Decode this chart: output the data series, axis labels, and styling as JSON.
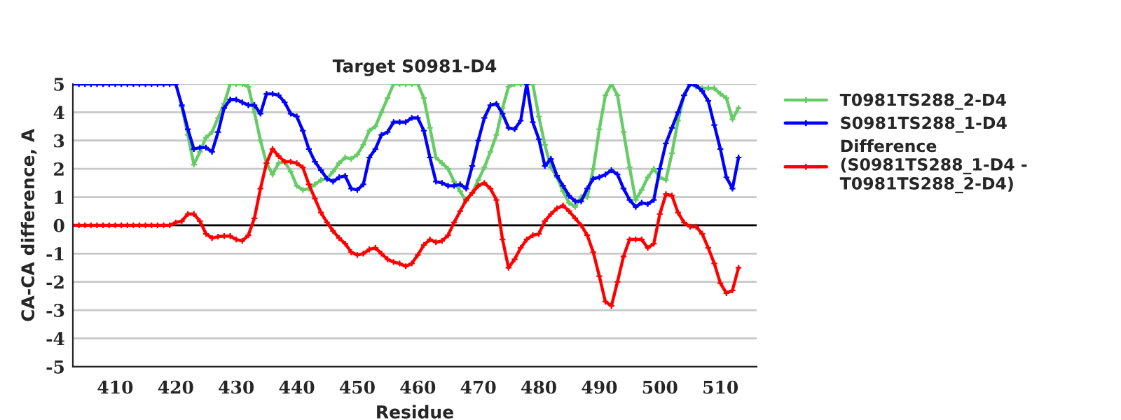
{
  "chart_data": {
    "type": "line",
    "title": "Target S0981-D4",
    "xlabel": "Residue",
    "ylabel": "CA-CA difference, A",
    "x": [
      403,
      404,
      405,
      406,
      407,
      408,
      409,
      410,
      411,
      412,
      413,
      414,
      415,
      416,
      417,
      418,
      419,
      420,
      421,
      422,
      423,
      424,
      425,
      426,
      427,
      428,
      429,
      430,
      431,
      432,
      433,
      434,
      435,
      436,
      437,
      438,
      439,
      440,
      441,
      442,
      443,
      444,
      445,
      446,
      447,
      448,
      449,
      450,
      451,
      452,
      453,
      454,
      455,
      456,
      457,
      458,
      459,
      460,
      461,
      462,
      463,
      464,
      465,
      466,
      467,
      468,
      469,
      470,
      471,
      472,
      473,
      474,
      475,
      476,
      477,
      478,
      479,
      480,
      481,
      482,
      483,
      484,
      485,
      486,
      487,
      488,
      489,
      490,
      491,
      492,
      493,
      494,
      495,
      496,
      497,
      498,
      499,
      500,
      501,
      502,
      503,
      504,
      505,
      506,
      507,
      508,
      509,
      510,
      511,
      512,
      513
    ],
    "series": [
      {
        "name": "T0981TS288_2-D4",
        "color": "#66cc66",
        "values": [
          null,
          null,
          null,
          null,
          null,
          null,
          null,
          null,
          null,
          null,
          null,
          null,
          null,
          null,
          null,
          null,
          null,
          null,
          4.2,
          3.2,
          2.15,
          2.6,
          3.1,
          3.3,
          3.8,
          4.3,
          5,
          5,
          5,
          4.9,
          4.0,
          3.0,
          2.2,
          1.8,
          2.2,
          2.25,
          1.9,
          1.4,
          1.25,
          1.3,
          1.45,
          1.6,
          1.65,
          1.9,
          2.2,
          2.4,
          2.35,
          2.5,
          2.85,
          3.35,
          3.5,
          4.0,
          4.5,
          5,
          5,
          5,
          5,
          5,
          4.5,
          3.45,
          2.4,
          2.2,
          2.0,
          1.55,
          1.2,
          0.85,
          1.15,
          1.6,
          2.05,
          2.6,
          3.2,
          4.15,
          4.9,
          5,
          5,
          5,
          5,
          3.85,
          2.85,
          2.05,
          1.7,
          1.2,
          0.8,
          0.65,
          1.0,
          1.0,
          2.0,
          3.4,
          4.6,
          5.0,
          4.6,
          3.3,
          2.05,
          0.9,
          1.25,
          1.7,
          2.0,
          1.7,
          1.6,
          2.55,
          3.7,
          4.6,
          5,
          4.9,
          4.85,
          4.85,
          4.85,
          4.65,
          4.5,
          3.75,
          4.15
        ]
      },
      {
        "name": "S0981TS288_1-D4",
        "color": "#0000ff",
        "values": [
          5,
          5,
          5,
          5,
          5,
          5,
          5,
          5,
          5,
          5,
          5,
          5,
          5,
          5,
          5,
          5,
          5,
          5,
          4.25,
          3.4,
          2.7,
          2.75,
          2.75,
          2.6,
          3.3,
          4.15,
          4.45,
          4.45,
          4.35,
          4.25,
          4.25,
          3.95,
          4.65,
          4.65,
          4.6,
          4.35,
          3.95,
          3.85,
          3.35,
          2.7,
          2.25,
          1.95,
          1.65,
          1.55,
          1.7,
          1.75,
          1.3,
          1.25,
          1.45,
          2.4,
          2.7,
          3.2,
          3.3,
          3.65,
          3.65,
          3.65,
          3.8,
          3.8,
          3.35,
          2.4,
          1.55,
          1.5,
          1.4,
          1.4,
          1.45,
          1.3,
          2.1,
          3.0,
          3.8,
          4.25,
          4.3,
          3.95,
          3.45,
          3.4,
          3.7,
          5.0,
          3.65,
          3.05,
          2.1,
          2.35,
          1.75,
          1.4,
          1.05,
          0.85,
          0.85,
          1.3,
          1.65,
          1.7,
          1.8,
          1.95,
          1.8,
          1.3,
          0.9,
          0.65,
          0.8,
          0.75,
          0.9,
          2.0,
          2.9,
          3.45,
          4.0,
          4.6,
          5.0,
          4.95,
          4.75,
          4.4,
          3.55,
          2.7,
          1.7,
          1.3,
          2.4
        ]
      },
      {
        "name": "Difference\n(S0981TS288_1-D4 -\nT0981TS288_2-D4)",
        "color": "#ff0000",
        "values": [
          0,
          0,
          0,
          0,
          0,
          0,
          0,
          0,
          0,
          0,
          0,
          0,
          0,
          0,
          0,
          0,
          0,
          0.1,
          0.15,
          0.4,
          0.4,
          0.15,
          -0.3,
          -0.45,
          -0.4,
          -0.38,
          -0.38,
          -0.5,
          -0.55,
          -0.35,
          0.25,
          1.3,
          2.2,
          2.7,
          2.45,
          2.25,
          2.25,
          2.2,
          2.05,
          1.45,
          0.95,
          0.45,
          0.1,
          -0.2,
          -0.45,
          -0.65,
          -0.95,
          -1.05,
          -1.0,
          -0.85,
          -0.8,
          -1.0,
          -1.2,
          -1.3,
          -1.35,
          -1.45,
          -1.35,
          -1.05,
          -0.7,
          -0.5,
          -0.6,
          -0.55,
          -0.35,
          0.1,
          0.5,
          0.9,
          1.15,
          1.4,
          1.5,
          1.3,
          0.9,
          -0.5,
          -1.5,
          -1.2,
          -0.8,
          -0.5,
          -0.35,
          -0.3,
          0.15,
          0.4,
          0.6,
          0.7,
          0.5,
          0.25,
          0.0,
          -0.35,
          -0.95,
          -1.8,
          -2.7,
          -2.85,
          -2.0,
          -1.1,
          -0.5,
          -0.5,
          -0.5,
          -0.8,
          -0.65,
          0.4,
          1.1,
          1.05,
          0.45,
          0.1,
          -0.05,
          -0.05,
          -0.3,
          -0.8,
          -1.35,
          -2.05,
          -2.4,
          -2.3,
          -1.5
        ]
      }
    ],
    "xlim": [
      403,
      516
    ],
    "xticks": [
      410,
      420,
      430,
      440,
      450,
      460,
      470,
      480,
      490,
      500,
      510
    ],
    "ylim": [
      -5,
      5
    ],
    "yticks": [
      -5,
      -4,
      -3,
      -2,
      -1,
      0,
      1,
      2,
      3,
      4,
      5
    ],
    "ref_lines": [
      {
        "axis": "y",
        "value": 0,
        "color": "#000000"
      }
    ],
    "grid": "y",
    "legend": "top right",
    "marker": "cross",
    "line_style": "solid"
  }
}
